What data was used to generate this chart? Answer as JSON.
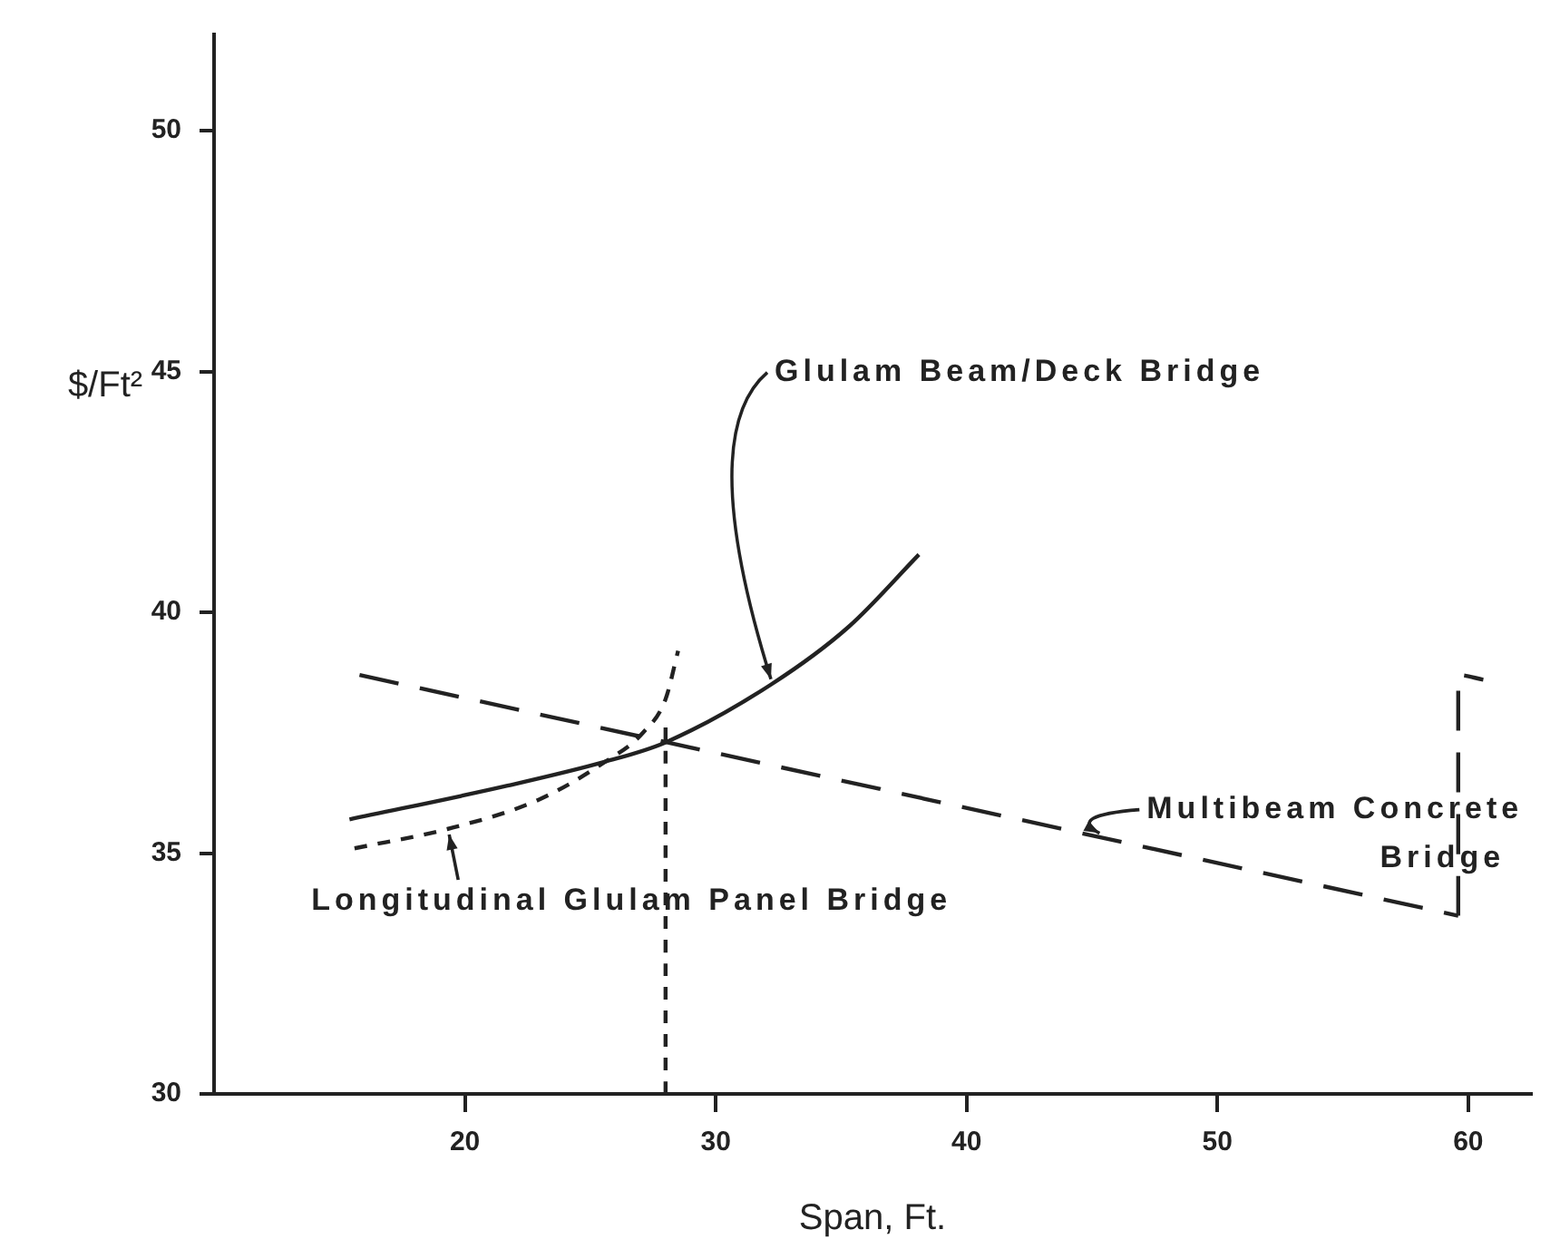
{
  "chart_data": {
    "type": "line",
    "xlabel": "Span, Ft.",
    "ylabel": "$/Ft²",
    "xlim": [
      10,
      62.5
    ],
    "xticks": [
      20,
      30,
      40,
      50,
      60
    ],
    "ylim": [
      30,
      52
    ],
    "yticks": [
      30,
      35,
      40,
      45,
      50
    ],
    "grid": false,
    "legend": false,
    "marker": "none",
    "series": [
      {
        "color": "#222222",
        "line_style": "solid",
        "x": [
          15.4,
          21.7,
          25.6,
          28.0,
          32.2,
          35.3,
          38.1
        ],
        "values": [
          35.7,
          36.4,
          36.9,
          37.3,
          38.5,
          39.7,
          41.2
        ]
      },
      {
        "color": "#222222",
        "line_style": "dotted",
        "x": [
          15.6,
          19.3,
          22.9,
          25.6,
          27.1,
          28.0,
          28.5
        ],
        "values": [
          35.1,
          35.5,
          36.1,
          36.9,
          37.5,
          38.2,
          39.2
        ]
      },
      {
        "color": "#222222",
        "line_style": "dashed",
        "x": [
          15.8,
          59.6
        ],
        "values": [
          38.7,
          33.7
        ]
      },
      {
        "color": "#222222",
        "line_style": "dashed",
        "x": [
          59.6,
          59.6,
          60.6
        ],
        "values": [
          33.7,
          38.7,
          38.6
        ]
      },
      {
        "color": "#222222",
        "line_style": "dotted",
        "x": [
          28.0,
          28.0
        ],
        "values": [
          30,
          37.7
        ]
      }
    ],
    "annotations": [
      {
        "text": "Glulam Beam/Deck Bridge",
        "x": 32.2,
        "y": 38.5
      },
      {
        "text": "Longitudinal Glulam Panel Bridge",
        "x": 19.3,
        "y": 35.5
      },
      {
        "text": "Multibeam Concrete Bridge",
        "x": 45.3,
        "y": 35.3
      }
    ]
  }
}
